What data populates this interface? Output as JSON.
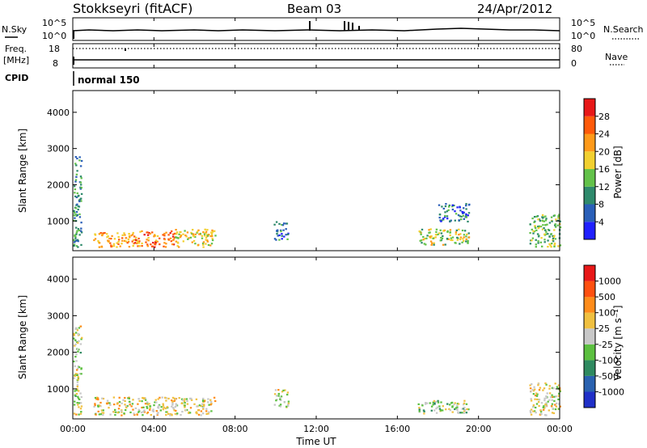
{
  "header": {
    "station_label": "Stokkseyri (fitACF)",
    "beam_label": "Beam 03",
    "date_label": "24/Apr/2012"
  },
  "aux_panels": {
    "nsky_label": "N.Sky",
    "nsearch_label": "N.Search",
    "noise_ticks_left": [
      "10^5",
      "10^0"
    ],
    "noise_ticks_right": [
      "10^5",
      "10^0"
    ],
    "freq_label_line1": "Freq.",
    "freq_label_line2": "[MHz]",
    "freq_ticks": [
      "18",
      "8"
    ],
    "nave_label": "Nave",
    "nave_ticks": [
      "80",
      "0"
    ],
    "cpid_label": "CPID",
    "cpid_value": "normal 150"
  },
  "axes": {
    "xlabel": "Time UT",
    "ylabel": "Slant Range [km]",
    "xtick_labels": [
      "00:00",
      "04:00",
      "08:00",
      "12:00",
      "16:00",
      "20:00",
      "00:00"
    ],
    "ytick_labels": [
      "4000",
      "3000",
      "2000",
      "1000"
    ]
  },
  "colorbars": {
    "power_title": "Power [dB]",
    "power_labels": [
      "28",
      "24",
      "20",
      "16",
      "12",
      "8",
      "4"
    ],
    "power_colors": [
      "#2020ff",
      "#2a5fb8",
      "#2f8a6c",
      "#63c24a",
      "#f2d030",
      "#ff9a1a",
      "#ff5a0a",
      "#e81818"
    ],
    "velocity_title": "Velocity [m s⁻¹]",
    "velocity_labels": [
      "1000",
      "500",
      "100",
      "25",
      "-25",
      "-100",
      "-500",
      "-1000"
    ],
    "velocity_colors": [
      "#2030c8",
      "#2a62b0",
      "#2f8a60",
      "#5cc040",
      "#c8c8c8",
      "#f0c040",
      "#ff8c1a",
      "#ff5010",
      "#e81818"
    ]
  },
  "chart_data": [
    {
      "type": "heatmap",
      "title": "Power",
      "xlabel": "Time UT",
      "ylabel": "Slant Range [km]",
      "xlim": [
        0,
        24
      ],
      "ylim": [
        180,
        4600
      ],
      "colorbar_range": [
        0,
        32
      ],
      "scatter_blocks": [
        {
          "t": [
            0.0,
            0.4
          ],
          "r": [
            300,
            2800
          ],
          "v": 10
        },
        {
          "t": [
            1.0,
            3.0
          ],
          "r": [
            300,
            700
          ],
          "v": 22
        },
        {
          "t": [
            3.0,
            5.0
          ],
          "r": [
            300,
            750
          ],
          "v": 24
        },
        {
          "t": [
            5.0,
            7.0
          ],
          "r": [
            300,
            800
          ],
          "v": 18
        },
        {
          "t": [
            9.9,
            10.6
          ],
          "r": [
            500,
            1000
          ],
          "v": 8
        },
        {
          "t": [
            17.0,
            19.5
          ],
          "r": [
            350,
            800
          ],
          "v": 16
        },
        {
          "t": [
            18.0,
            19.5
          ],
          "r": [
            1000,
            1500
          ],
          "v": 8
        },
        {
          "t": [
            22.5,
            24.0
          ],
          "r": [
            300,
            1200
          ],
          "v": 14
        }
      ]
    },
    {
      "type": "heatmap",
      "title": "Velocity",
      "xlabel": "Time UT",
      "ylabel": "Slant Range [km]",
      "xlim": [
        0,
        24
      ],
      "ylim": [
        180,
        4600
      ],
      "colorbar_range": [
        -1000,
        1000
      ],
      "scatter_blocks": [
        {
          "t": [
            0.0,
            0.4
          ],
          "r": [
            300,
            2800
          ],
          "v": 0
        },
        {
          "t": [
            1.0,
            7.0
          ],
          "r": [
            300,
            800
          ],
          "v": 100
        },
        {
          "t": [
            9.9,
            10.6
          ],
          "r": [
            500,
            1000
          ],
          "v": 0
        },
        {
          "t": [
            17.0,
            19.5
          ],
          "r": [
            350,
            700
          ],
          "v": -100
        },
        {
          "t": [
            22.5,
            24.0
          ],
          "r": [
            300,
            1200
          ],
          "v": 25
        }
      ]
    }
  ]
}
